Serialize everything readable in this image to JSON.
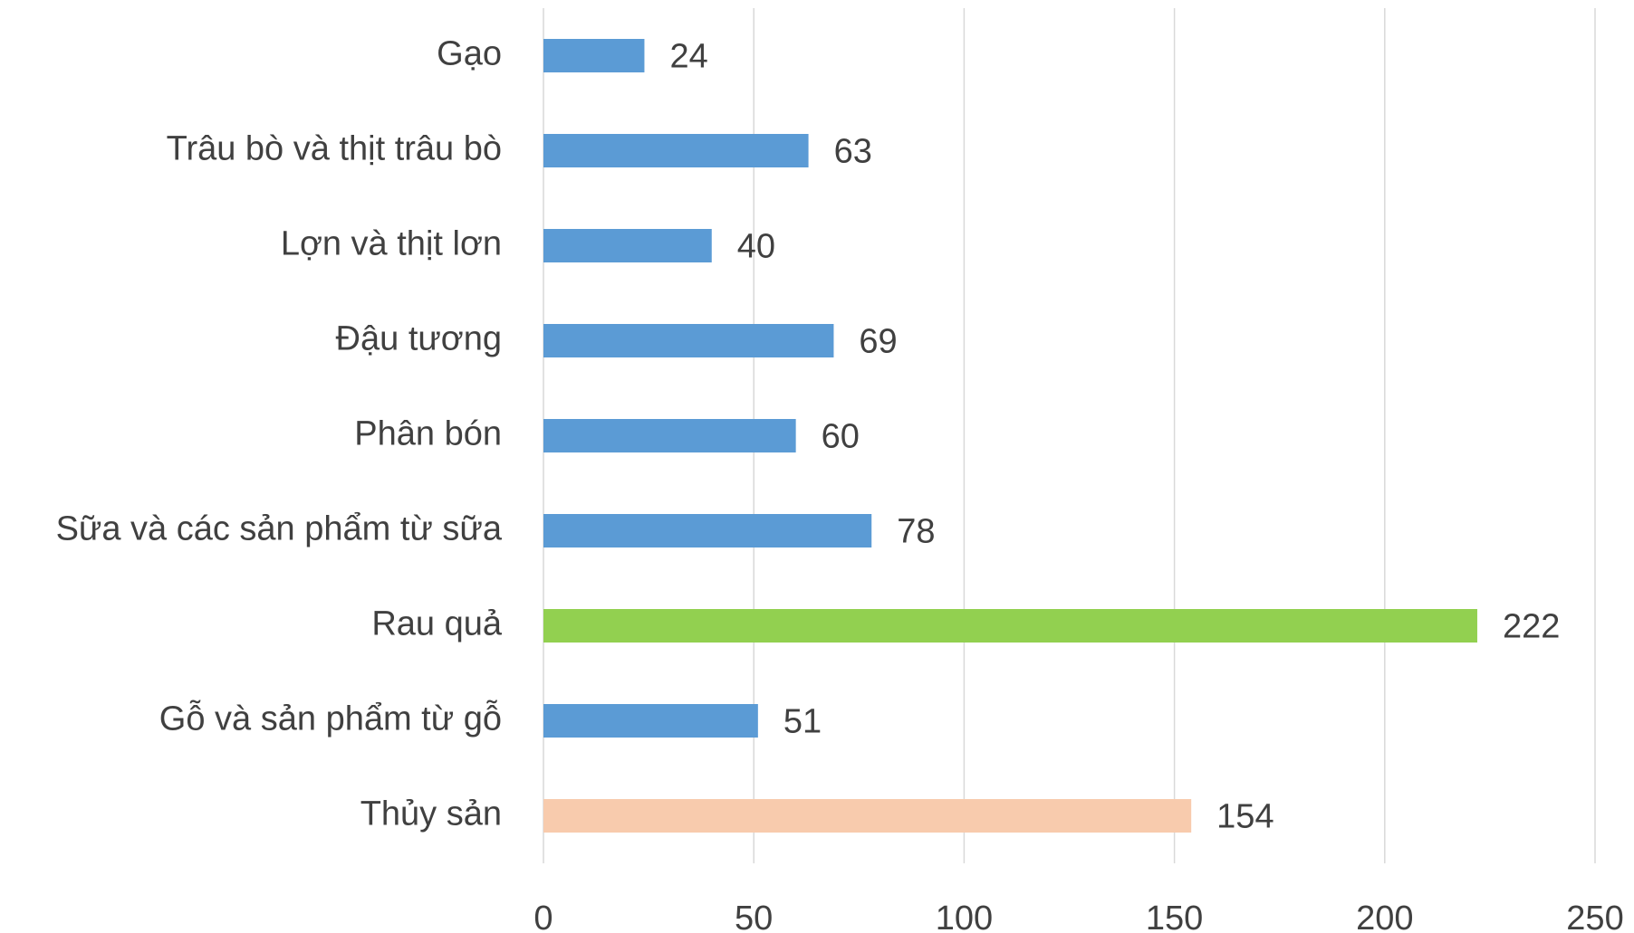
{
  "chart_data": {
    "type": "barh",
    "categories": [
      "Gạo",
      "Trâu bò và thịt trâu bò",
      "Lợn và thịt lơn",
      "Đậu tương",
      "Phân bón",
      "Sữa và các sản phẩm từ sữa",
      "Rau quả",
      "Gỗ và sản phẩm từ gỗ",
      "Thủy sản"
    ],
    "values": [
      24,
      63,
      40,
      69,
      60,
      78,
      222,
      51,
      154
    ],
    "colors": [
      "#5b9bd5",
      "#5b9bd5",
      "#5b9bd5",
      "#5b9bd5",
      "#5b9bd5",
      "#5b9bd5",
      "#92d050",
      "#5b9bd5",
      "#f8cbad"
    ],
    "xlim": [
      0,
      250
    ],
    "xticks": [
      0,
      50,
      100,
      150,
      200,
      250
    ],
    "grid": true
  }
}
